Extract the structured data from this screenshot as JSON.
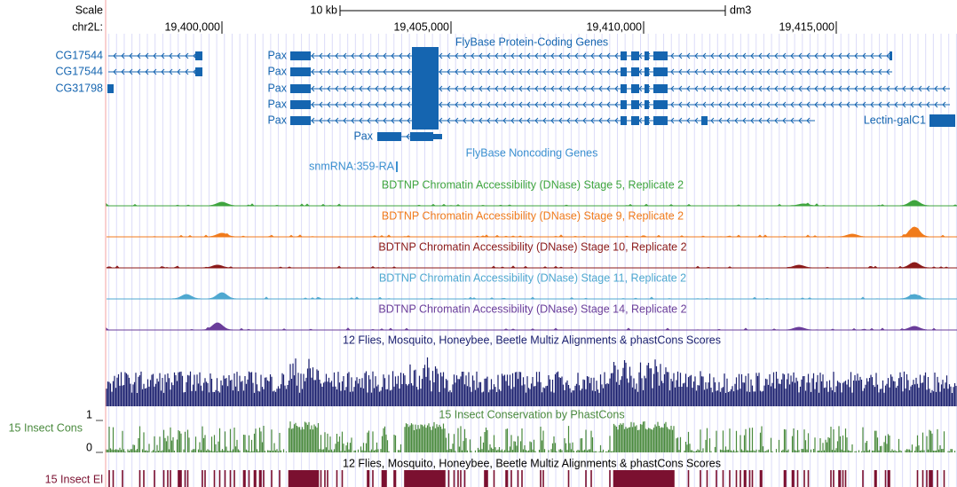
{
  "ruler": {
    "scale_label": "Scale",
    "chrom_label": "chr2L:",
    "scale_bar_label": "10 kb",
    "assembly": "dm3",
    "positions": [
      "19,400,000",
      "19,405,000",
      "19,410,000",
      "19,415,000"
    ]
  },
  "protein_coding": {
    "title": "FlyBase Protein-Coding Genes",
    "color": "#1565b0",
    "genes": [
      "CG17544",
      "CG17544",
      "CG31798",
      "Pax",
      "Pax",
      "Pax",
      "Pax",
      "Pax",
      "Lectin-galC1",
      "Pax"
    ]
  },
  "noncoding": {
    "title": "FlyBase Noncoding Genes",
    "color": "#3a8fd0",
    "genes": [
      "snmRNA:359-RA"
    ]
  },
  "dnase": [
    {
      "title": "BDTNP Chromatin Accessibility (DNase) Stage 5, Replicate 2",
      "color": "#3fa53f"
    },
    {
      "title": "BDTNP Chromatin Accessibility (DNase) Stage 9, Replicate 2",
      "color": "#f07b1c"
    },
    {
      "title": "BDTNP Chromatin Accessibility (DNase) Stage 10, Replicate 2",
      "color": "#8b1a1a"
    },
    {
      "title": "BDTNP Chromatin Accessibility (DNase) Stage 11, Replicate 2",
      "color": "#4fa8d0"
    },
    {
      "title": "BDTNP Chromatin Accessibility (DNase) Stage 14, Replicate 2",
      "color": "#6a3d9a"
    }
  ],
  "multiz": {
    "title": "12 Flies, Mosquito, Honeybee, Beetle Multiz Alignments & phastCons Scores",
    "color": "#1a1f6e"
  },
  "phastcons": {
    "title": "15 Insect Conservation by PhastCons",
    "label": "15 Insect Cons",
    "scale_max": "1",
    "scale_min": "0",
    "color": "#4a8a3e"
  },
  "elements": {
    "title": "12 Flies, Mosquito, Honeybee, Beetle Multiz Alignments & phastCons Scores",
    "label": "15 Insect El",
    "color": "#7b1030"
  }
}
